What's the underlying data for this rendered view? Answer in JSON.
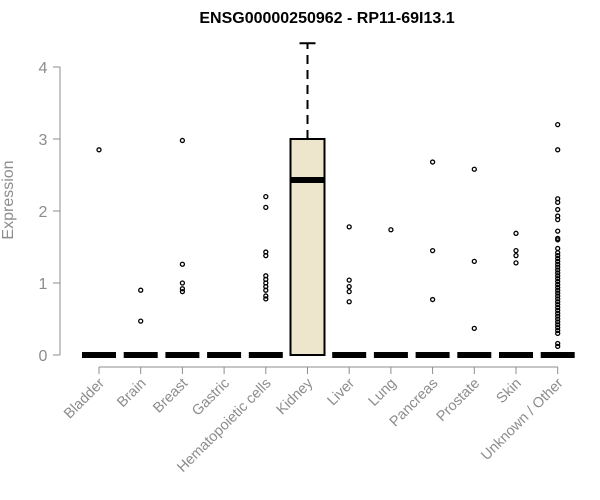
{
  "chart_data": {
    "type": "box",
    "title": "ENSG00000250962 - RP11-69I13.1",
    "xlabel": "",
    "ylabel": "Expression",
    "ylim": [
      0,
      4.4
    ],
    "yticks": [
      0,
      1,
      2,
      3,
      4
    ],
    "categories": [
      "Bladder",
      "Brain",
      "Breast",
      "Gastric",
      "Hematopoietic cells",
      "Kidney",
      "Liver",
      "Lung",
      "Pancreas",
      "Prostate",
      "Skin",
      "Unknown / Other"
    ],
    "box_fill": "#ede6cc",
    "boxes": [
      {
        "category": "Bladder",
        "median": 0,
        "q1": 0,
        "q3": 0,
        "whisker_low": 0,
        "whisker_high": 0,
        "outliers": [
          2.85
        ]
      },
      {
        "category": "Brain",
        "median": 0,
        "q1": 0,
        "q3": 0,
        "whisker_low": 0,
        "whisker_high": 0,
        "outliers": [
          0.9,
          0.47
        ]
      },
      {
        "category": "Breast",
        "median": 0,
        "q1": 0,
        "q3": 0,
        "whisker_low": 0,
        "whisker_high": 0,
        "outliers": [
          2.98,
          1.26,
          1.0,
          0.92,
          0.88
        ]
      },
      {
        "category": "Gastric",
        "median": 0,
        "q1": 0,
        "q3": 0,
        "whisker_low": 0,
        "whisker_high": 0,
        "outliers": []
      },
      {
        "category": "Hematopoietic cells",
        "median": 0,
        "q1": 0,
        "q3": 0,
        "whisker_low": 0,
        "whisker_high": 0,
        "outliers": [
          2.2,
          2.05,
          1.43,
          1.38,
          1.1,
          1.05,
          1.0,
          0.95,
          0.9,
          0.82,
          0.78
        ]
      },
      {
        "category": "Kidney",
        "median": 2.43,
        "q1": 0,
        "q3": 3.0,
        "whisker_low": 0,
        "whisker_high": 4.33,
        "outliers": []
      },
      {
        "category": "Liver",
        "median": 0,
        "q1": 0,
        "q3": 0,
        "whisker_low": 0,
        "whisker_high": 0,
        "outliers": [
          1.78,
          1.04,
          0.95,
          0.88,
          0.74
        ]
      },
      {
        "category": "Lung",
        "median": 0,
        "q1": 0,
        "q3": 0,
        "whisker_low": 0,
        "whisker_high": 0,
        "outliers": [
          1.74
        ]
      },
      {
        "category": "Pancreas",
        "median": 0,
        "q1": 0,
        "q3": 0,
        "whisker_low": 0,
        "whisker_high": 0,
        "outliers": [
          2.68,
          1.45,
          0.77
        ]
      },
      {
        "category": "Prostate",
        "median": 0,
        "q1": 0,
        "q3": 0,
        "whisker_low": 0,
        "whisker_high": 0,
        "outliers": [
          2.58,
          1.3,
          0.37
        ]
      },
      {
        "category": "Skin",
        "median": 0,
        "q1": 0,
        "q3": 0,
        "whisker_low": 0,
        "whisker_high": 0,
        "outliers": [
          1.69,
          1.45,
          1.38,
          1.28
        ]
      },
      {
        "category": "Unknown / Other",
        "median": 0,
        "q1": 0,
        "q3": 0,
        "whisker_low": 0,
        "whisker_high": 0,
        "outliers": [
          3.2,
          2.85,
          2.17,
          2.12,
          2.02,
          1.93,
          1.88,
          1.72,
          1.62,
          1.6,
          1.48,
          1.42,
          1.38,
          1.34,
          1.3,
          1.26,
          1.22,
          1.18,
          1.14,
          1.1,
          1.06,
          1.02,
          0.98,
          0.94,
          0.9,
          0.86,
          0.82,
          0.78,
          0.74,
          0.7,
          0.66,
          0.62,
          0.58,
          0.54,
          0.5,
          0.46,
          0.42,
          0.38,
          0.34,
          0.3,
          0.16,
          0.12
        ]
      }
    ]
  }
}
